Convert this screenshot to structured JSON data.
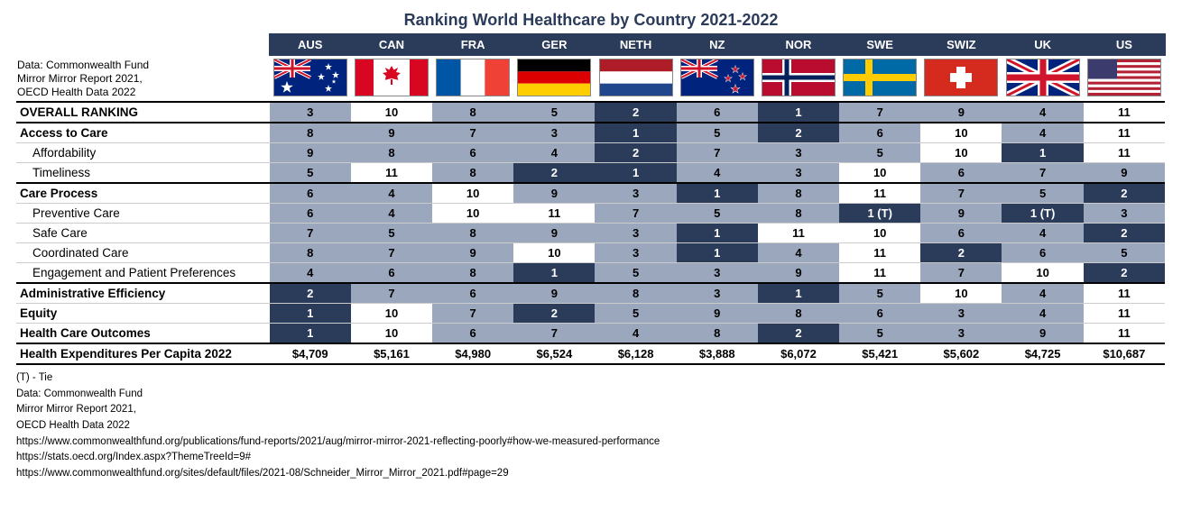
{
  "title": "Ranking World Healthcare by Country 2021-2022",
  "source_in_table": "Data: Commonwealth Fund\nMirror Mirror Report 2021,\nOECD Health Data 2022",
  "colors": {
    "header_bg": "#2b3b5a",
    "cell_mid": "#9aa7bd",
    "cell_dark": "#2b3b5a",
    "cell_white": "#ffffff",
    "text_dark": "#000000",
    "text_light": "#ffffff"
  },
  "countries": [
    {
      "code": "AUS",
      "flag": "aus"
    },
    {
      "code": "CAN",
      "flag": "can"
    },
    {
      "code": "FRA",
      "flag": "fra"
    },
    {
      "code": "GER",
      "flag": "ger"
    },
    {
      "code": "NETH",
      "flag": "neth"
    },
    {
      "code": "NZ",
      "flag": "nz"
    },
    {
      "code": "NOR",
      "flag": "nor"
    },
    {
      "code": "SWE",
      "flag": "swe"
    },
    {
      "code": "SWIZ",
      "flag": "swiz"
    },
    {
      "code": "UK",
      "flag": "uk"
    },
    {
      "code": "US",
      "flag": "us"
    }
  ],
  "rows": [
    {
      "label": "OVERALL RANKING",
      "bold": true,
      "sep": "both",
      "cells": [
        [
          "3",
          "mid"
        ],
        [
          "10",
          "white"
        ],
        [
          "8",
          "mid"
        ],
        [
          "5",
          "mid"
        ],
        [
          "2",
          "dark"
        ],
        [
          "6",
          "mid"
        ],
        [
          "1",
          "dark"
        ],
        [
          "7",
          "mid"
        ],
        [
          "9",
          "mid"
        ],
        [
          "4",
          "mid"
        ],
        [
          "11",
          "white"
        ]
      ]
    },
    {
      "label": "Access to Care",
      "bold": true,
      "cells": [
        [
          "8",
          "mid"
        ],
        [
          "9",
          "mid"
        ],
        [
          "7",
          "mid"
        ],
        [
          "3",
          "mid"
        ],
        [
          "1",
          "dark"
        ],
        [
          "5",
          "mid"
        ],
        [
          "2",
          "dark"
        ],
        [
          "6",
          "mid"
        ],
        [
          "10",
          "white"
        ],
        [
          "4",
          "mid"
        ],
        [
          "11",
          "white"
        ]
      ]
    },
    {
      "label": "Affordability",
      "indent": true,
      "cells": [
        [
          "9",
          "mid"
        ],
        [
          "8",
          "mid"
        ],
        [
          "6",
          "mid"
        ],
        [
          "4",
          "mid"
        ],
        [
          "2",
          "dark"
        ],
        [
          "7",
          "mid"
        ],
        [
          "3",
          "mid"
        ],
        [
          "5",
          "mid"
        ],
        [
          "10",
          "white"
        ],
        [
          "1",
          "dark"
        ],
        [
          "11",
          "white"
        ]
      ]
    },
    {
      "label": "Timeliness",
      "indent": true,
      "cells": [
        [
          "5",
          "mid"
        ],
        [
          "11",
          "white"
        ],
        [
          "8",
          "mid"
        ],
        [
          "2",
          "dark"
        ],
        [
          "1",
          "dark"
        ],
        [
          "4",
          "mid"
        ],
        [
          "3",
          "mid"
        ],
        [
          "10",
          "white"
        ],
        [
          "6",
          "mid"
        ],
        [
          "7",
          "mid"
        ],
        [
          "9",
          "mid"
        ]
      ]
    },
    {
      "label": "Care Process",
      "bold": true,
      "sep": "top",
      "cells": [
        [
          "6",
          "mid"
        ],
        [
          "4",
          "mid"
        ],
        [
          "10",
          "white"
        ],
        [
          "9",
          "mid"
        ],
        [
          "3",
          "mid"
        ],
        [
          "1",
          "dark"
        ],
        [
          "8",
          "mid"
        ],
        [
          "11",
          "white"
        ],
        [
          "7",
          "mid"
        ],
        [
          "5",
          "mid"
        ],
        [
          "2",
          "dark"
        ]
      ]
    },
    {
      "label": "Preventive Care",
      "indent": true,
      "cells": [
        [
          "6",
          "mid"
        ],
        [
          "4",
          "mid"
        ],
        [
          "10",
          "white"
        ],
        [
          "11",
          "white"
        ],
        [
          "7",
          "mid"
        ],
        [
          "5",
          "mid"
        ],
        [
          "8",
          "mid"
        ],
        [
          "1 (T)",
          "dark"
        ],
        [
          "9",
          "mid"
        ],
        [
          "1 (T)",
          "dark"
        ],
        [
          "3",
          "mid"
        ]
      ]
    },
    {
      "label": "Safe Care",
      "indent": true,
      "cells": [
        [
          "7",
          "mid"
        ],
        [
          "5",
          "mid"
        ],
        [
          "8",
          "mid"
        ],
        [
          "9",
          "mid"
        ],
        [
          "3",
          "mid"
        ],
        [
          "1",
          "dark"
        ],
        [
          "11",
          "white"
        ],
        [
          "10",
          "white"
        ],
        [
          "6",
          "mid"
        ],
        [
          "4",
          "mid"
        ],
        [
          "2",
          "dark"
        ]
      ]
    },
    {
      "label": "Coordinated Care",
      "indent": true,
      "cells": [
        [
          "8",
          "mid"
        ],
        [
          "7",
          "mid"
        ],
        [
          "9",
          "mid"
        ],
        [
          "10",
          "white"
        ],
        [
          "3",
          "mid"
        ],
        [
          "1",
          "dark"
        ],
        [
          "4",
          "mid"
        ],
        [
          "11",
          "white"
        ],
        [
          "2",
          "dark"
        ],
        [
          "6",
          "mid"
        ],
        [
          "5",
          "mid"
        ]
      ]
    },
    {
      "label": "Engagement and  Patient Preferences",
      "indent": true,
      "cells": [
        [
          "4",
          "mid"
        ],
        [
          "6",
          "mid"
        ],
        [
          "8",
          "mid"
        ],
        [
          "1",
          "dark"
        ],
        [
          "5",
          "mid"
        ],
        [
          "3",
          "mid"
        ],
        [
          "9",
          "mid"
        ],
        [
          "11",
          "white"
        ],
        [
          "7",
          "mid"
        ],
        [
          "10",
          "white"
        ],
        [
          "2",
          "dark"
        ]
      ]
    },
    {
      "label": "Administrative Efficiency",
      "bold": true,
      "sep": "top",
      "cells": [
        [
          "2",
          "dark"
        ],
        [
          "7",
          "mid"
        ],
        [
          "6",
          "mid"
        ],
        [
          "9",
          "mid"
        ],
        [
          "8",
          "mid"
        ],
        [
          "3",
          "mid"
        ],
        [
          "1",
          "dark"
        ],
        [
          "5",
          "mid"
        ],
        [
          "10",
          "white"
        ],
        [
          "4",
          "mid"
        ],
        [
          "11",
          "white"
        ]
      ]
    },
    {
      "label": "Equity",
      "bold": true,
      "cells": [
        [
          "1",
          "dark"
        ],
        [
          "10",
          "white"
        ],
        [
          "7",
          "mid"
        ],
        [
          "2",
          "dark"
        ],
        [
          "5",
          "mid"
        ],
        [
          "9",
          "mid"
        ],
        [
          "8",
          "mid"
        ],
        [
          "6",
          "mid"
        ],
        [
          "3",
          "mid"
        ],
        [
          "4",
          "mid"
        ],
        [
          "11",
          "white"
        ]
      ]
    },
    {
      "label": "Health Care Outcomes",
      "bold": true,
      "sep": "bot",
      "cells": [
        [
          "1",
          "dark"
        ],
        [
          "10",
          "white"
        ],
        [
          "6",
          "mid"
        ],
        [
          "7",
          "mid"
        ],
        [
          "4",
          "mid"
        ],
        [
          "8",
          "mid"
        ],
        [
          "2",
          "dark"
        ],
        [
          "5",
          "mid"
        ],
        [
          "3",
          "mid"
        ],
        [
          "9",
          "mid"
        ],
        [
          "11",
          "white"
        ]
      ]
    },
    {
      "label": "Health Expenditures Per Capita 2022",
      "bold": true,
      "sep": "bot",
      "plain": true,
      "cells": [
        [
          "$4,709",
          "white"
        ],
        [
          "$5,161",
          "white"
        ],
        [
          "$4,980",
          "white"
        ],
        [
          "$6,524",
          "white"
        ],
        [
          "$6,128",
          "white"
        ],
        [
          "$3,888",
          "white"
        ],
        [
          "$6,072",
          "white"
        ],
        [
          "$5,421",
          "white"
        ],
        [
          "$5,602",
          "white"
        ],
        [
          "$4,725",
          "white"
        ],
        [
          "$10,687",
          "white"
        ]
      ]
    }
  ],
  "footnotes": [
    "(T) - Tie",
    "Data: Commonwealth Fund",
    "Mirror Mirror Report 2021,",
    "OECD Health Data 2022",
    "https://www.commonwealthfund.org/publications/fund-reports/2021/aug/mirror-mirror-2021-reflecting-poorly#how-we-measured-performance",
    "https://stats.oecd.org/Index.aspx?ThemeTreeId=9#",
    "https://www.commonwealthfund.org/sites/default/files/2021-08/Schneider_Mirror_Mirror_2021.pdf#page=29"
  ],
  "flags": {
    "aus": "<svg viewBox='0 0 80 40'><rect width='80' height='40' fill='#00247d'/><rect width='40' height='20' fill='#00247d'/><path d='M0 0L40 20M40 0L0 20' stroke='#fff' stroke-width='4'/><path d='M0 0L40 20M40 0L0 20' stroke='#cf142b' stroke-width='2'/><path d='M20 0V20M0 10H40' stroke='#fff' stroke-width='6'/><path d='M20 0V20M0 10H40' stroke='#cf142b' stroke-width='3'/><g fill='#fff'><polygon points='14,24 15.7,28.8 20.8,28.9 16.7,31.9 18.2,36.8 14,33.9 9.8,36.8 11.3,31.9 7.2,28.9 12.3,28.8'/><polygon points='60,4 61,7 64,7 61.6,8.8 62.5,11.7 60,10 57.5,11.7 58.4,8.8 56,7 59,7'/><polygon points='52,15 53,18 56,18 53.6,19.8 54.5,22.7 52,21 49.5,22.7 50.4,19.8 48,18 51,18'/><polygon points='68,13 69,16 72,16 69.6,17.8 70.5,20.7 68,19 65.5,20.7 66.4,17.8 64,16 67,16'/><polygon points='60,28 61,31 64,31 61.6,32.8 62.5,35.7 60,34 57.5,35.7 58.4,32.8 56,31 59,31'/><polygon points='66,22 66.6,23.7 68.4,23.7 67,24.8 67.5,26.5 66,25.5 64.5,26.5 65,24.8 63.6,23.7 65.4,23.7'/></g></svg>",
    "can": "<svg viewBox='0 0 80 40'><rect width='80' height='40' fill='#fff'/><rect width='20' height='40' fill='#d80621'/><rect x='60' width='20' height='40' fill='#d80621'/><path fill='#d80621' d='M40 7l2.5 4.5 4.7-2.5-2.3 5 5 1-3.7 3.3 1 4.5L40 21l-7.2 1.8 1-4.5L30 15l5-1-2.3-5 4.7 2.5z M39 22h2v6h-2z'/></svg>",
    "fra": "<svg viewBox='0 0 80 40'><rect width='26.67' height='40' fill='#0055a4'/><rect x='26.67' width='26.67' height='40' fill='#fff'/><rect x='53.33' width='26.67' height='40' fill='#ef4135'/></svg>",
    "ger": "<svg viewBox='0 0 80 40'><rect width='80' height='13.33' fill='#000'/><rect y='13.33' width='80' height='13.33' fill='#dd0000'/><rect y='26.67' width='80' height='13.33' fill='#ffce00'/></svg>",
    "neth": "<svg viewBox='0 0 80 40'><rect width='80' height='13.33' fill='#ae1c28'/><rect y='13.33' width='80' height='13.33' fill='#fff'/><rect y='26.67' width='80' height='13.33' fill='#21468b'/></svg>",
    "nz": "<svg viewBox='0 0 80 40'><rect width='80' height='40' fill='#00247d'/><rect width='40' height='20' fill='#00247d'/><path d='M0 0L40 20M40 0L0 20' stroke='#fff' stroke-width='4'/><path d='M0 0L40 20M40 0L0 20' stroke='#cf142b' stroke-width='2'/><path d='M20 0V20M0 10H40' stroke='#fff' stroke-width='6'/><path d='M20 0V20M0 10H40' stroke='#cf142b' stroke-width='3'/><g><polygon fill='#fff' points='60,6 61.2,9.5 64.9,9.5 61.9,11.7 63,15.2 60,13 57,15.2 58.1,11.7 55.1,9.5 58.8,9.5'/><polygon fill='#cc142b' points='60,7.2 60.9,9.8 63.6,9.8 61.4,11.4 62.2,14 60,12.4 57.8,14 58.6,11.4 56.4,9.8 59.1,9.8'/><polygon fill='#fff' points='52,16 53.2,19.5 56.9,19.5 53.9,21.7 55,25.2 52,23 49,25.2 50.1,21.7 47.1,19.5 50.8,19.5'/><polygon fill='#cc142b' points='52,17.2 52.9,19.8 55.6,19.8 53.4,21.4 54.2,24 52,22.4 49.8,24 50.6,21.4 48.4,19.8 51.1,19.8'/><polygon fill='#fff' points='68,14 69.2,17.5 72.9,17.5 69.9,19.7 71,23.2 68,21 65,23.2 66.1,19.7 63.1,17.5 66.8,17.5'/><polygon fill='#cc142b' points='68,15.2 68.9,17.8 71.6,17.8 69.4,19.4 70.2,22 68,20.4 65.8,22 66.6,19.4 64.4,17.8 67.1,17.8'/><polygon fill='#fff' points='60,27 61.4,31.1 65.7,31.1 62.2,33.6 63.5,37.7 60,35.2 56.5,37.7 57.8,33.6 54.3,31.1 58.6,31.1'/><polygon fill='#cc142b' points='60,28.4 61,31.4 64.2,31.4 61.6,33.3 62.6,36.3 60,34.5 57.4,36.3 58.4,33.3 55.8,31.4 59,31.4'/></g></svg>",
    "nor": "<svg viewBox='0 0 80 40'><rect width='80' height='40' fill='#ba0c2f'/><rect x='22' width='10' height='40' fill='#fff'/><rect y='15' width='80' height='10' fill='#fff'/><rect x='24.5' width='5' height='40' fill='#00205b'/><rect y='17.5' width='80' height='5' fill='#00205b'/></svg>",
    "swe": "<svg viewBox='0 0 80 40'><rect width='80' height='40' fill='#006aa7'/><rect x='24' width='8' height='40' fill='#fecc00'/><rect y='16' width='80' height='8' fill='#fecc00'/></svg>",
    "swiz": "<svg viewBox='0 0 80 40'><rect width='80' height='40' fill='#d52b1e'/><rect x='35' y='8' width='10' height='24' fill='#fff'/><rect x='28' y='15' width='24' height='10' fill='#fff'/></svg>",
    "uk": "<svg viewBox='0 0 80 40'><rect width='80' height='40' fill='#00247d'/><path d='M0 0L80 40M80 0L0 40' stroke='#fff' stroke-width='8'/><path d='M0 0L80 40M80 0L0 40' stroke='#cf142b' stroke-width='3'/><path d='M40 0V40M0 20H80' stroke='#fff' stroke-width='12'/><path d='M40 0V40M0 20H80' stroke='#cf142b' stroke-width='7'/></svg>",
    "us": "<svg viewBox='0 0 80 40'><rect width='80' height='40' fill='#b22234'/><g fill='#fff'><rect y='3.08' width='80' height='3.08'/><rect y='9.23' width='80' height='3.08'/><rect y='15.38' width='80' height='3.08'/><rect y='21.54' width='80' height='3.08'/><rect y='27.69' width='80' height='3.08'/><rect y='33.85' width='80' height='3.08'/></g><rect width='32' height='21.5' fill='#3c3b6e'/></svg>"
  }
}
